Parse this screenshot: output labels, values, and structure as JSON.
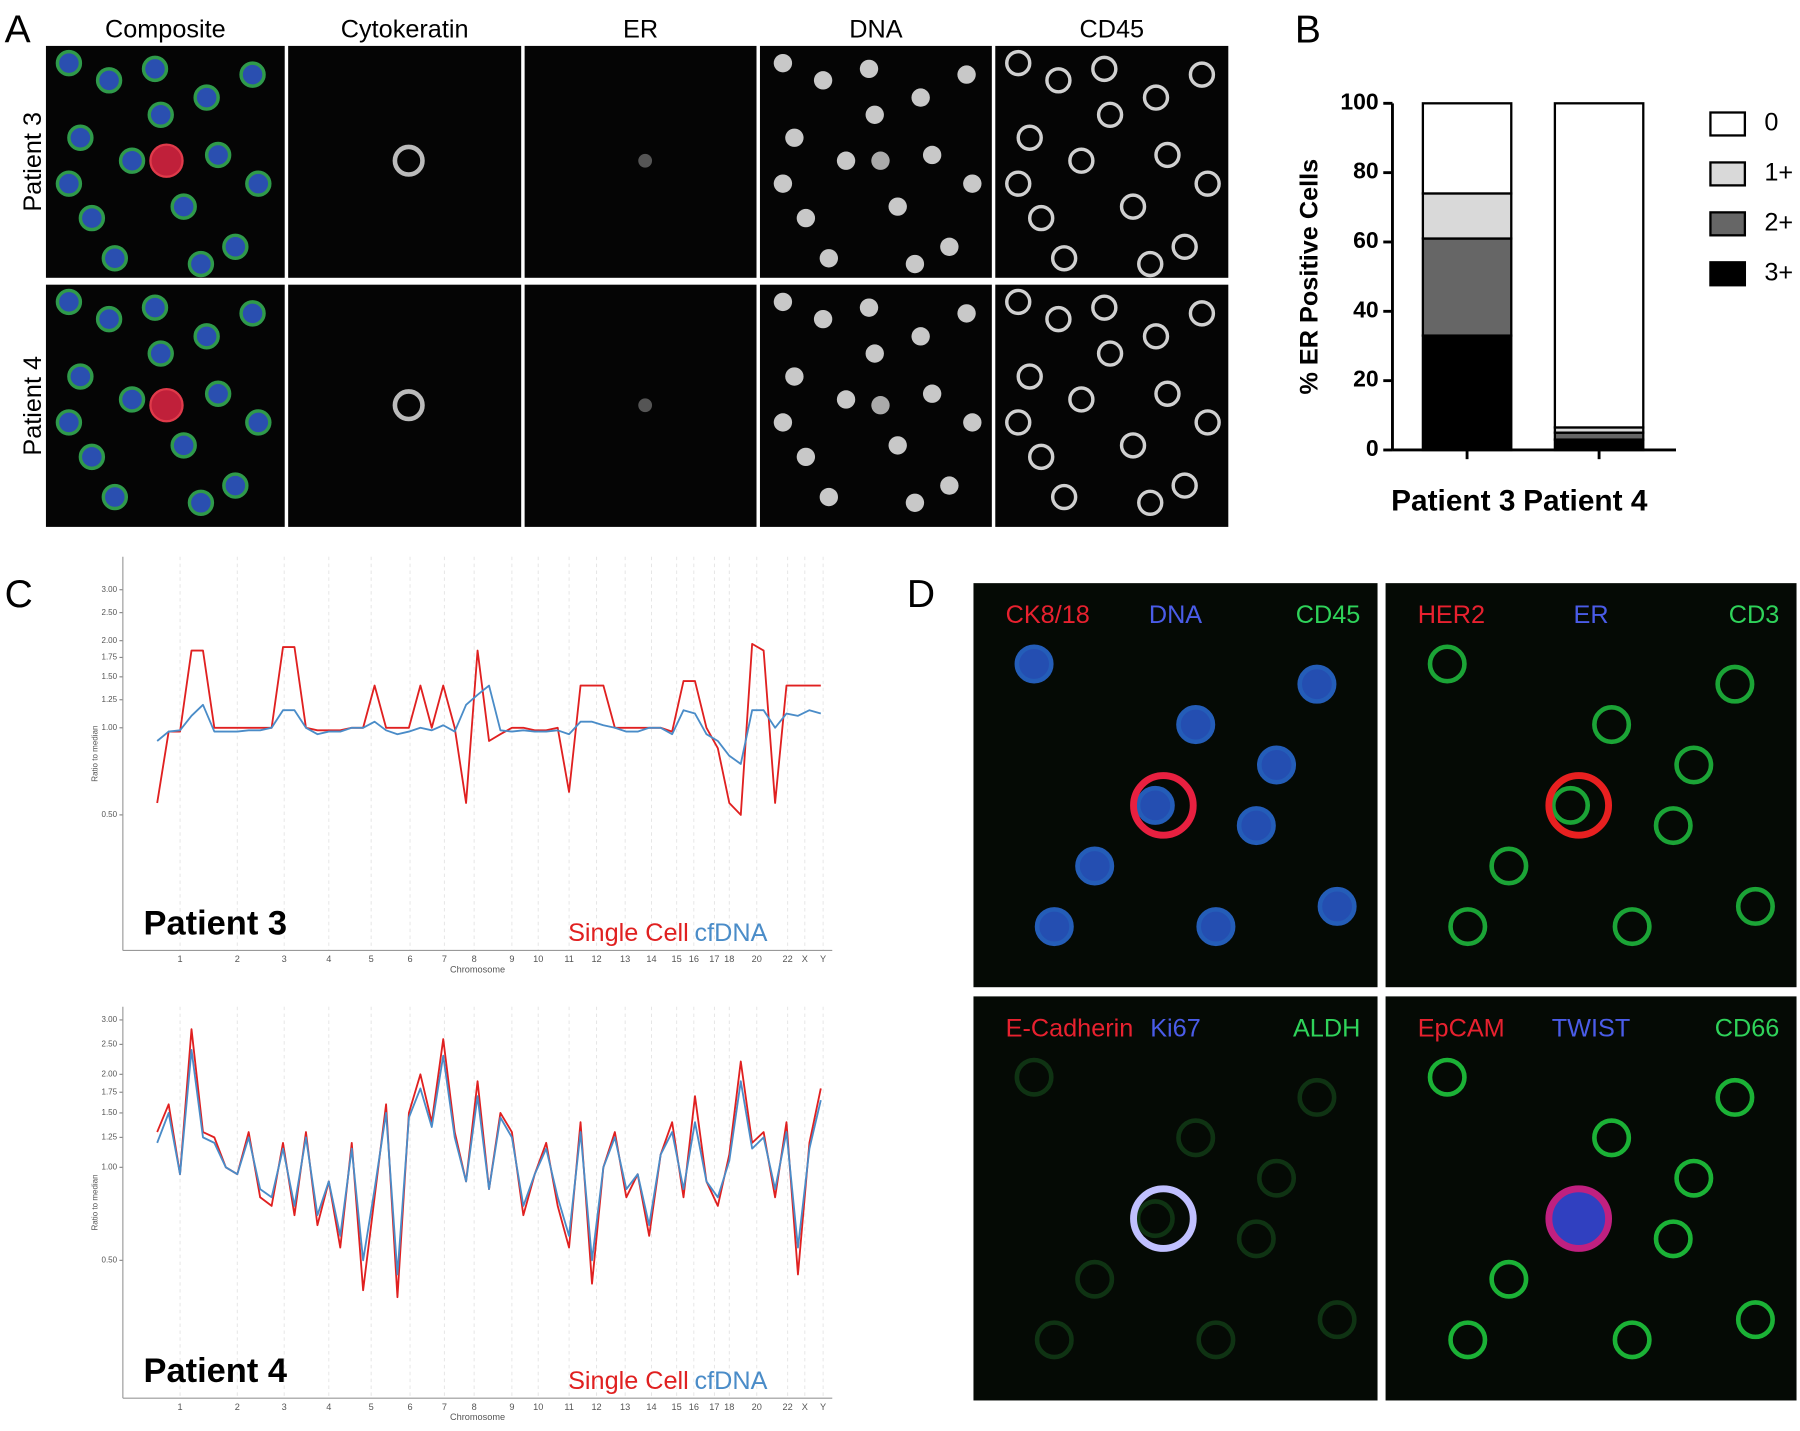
{
  "panel_labels": [
    "A",
    "B",
    "C",
    "D"
  ],
  "panel_a": {
    "columns": [
      "Composite",
      "Cytokeratin",
      "ER",
      "DNA",
      "CD45"
    ],
    "rows": [
      "Patient 3",
      "Patient 4"
    ]
  },
  "chart_data": [
    {
      "type": "bar",
      "stacked": true,
      "ylabel": "% ER Positive Cells",
      "categories": [
        "Patient 3",
        "Patient 4"
      ],
      "series": [
        {
          "name": "3+",
          "color": "#000000",
          "values": [
            33,
            3
          ]
        },
        {
          "name": "2+",
          "color": "#666666",
          "values": [
            28,
            2
          ]
        },
        {
          "name": "1+",
          "color": "#d9d9d9",
          "values": [
            13,
            1.5
          ]
        },
        {
          "name": "0",
          "color": "#ffffff",
          "values": [
            26,
            93.5
          ]
        }
      ],
      "ylim": [
        0,
        100
      ],
      "yticks": [
        0,
        20,
        40,
        60,
        80,
        100
      ],
      "legend": "right"
    },
    {
      "type": "line",
      "annotation": "Patient 3",
      "xlabel": "Chromosome",
      "ylabel": "Ratio to median",
      "yscale": "log",
      "x": [
        30,
        40,
        50,
        60,
        70,
        80,
        90,
        100,
        110,
        120,
        130,
        140,
        150,
        160,
        170,
        180,
        190,
        200,
        210,
        220,
        230,
        240,
        250,
        260,
        270,
        280,
        290,
        300,
        310,
        320,
        330,
        340,
        350,
        360,
        370,
        380,
        390,
        400,
        410,
        420,
        430,
        440,
        450,
        460,
        470,
        480,
        490,
        500,
        510,
        520,
        530,
        540,
        550,
        560,
        570,
        580,
        590,
        600,
        610
      ],
      "series": [
        {
          "name": "Single Cell",
          "color": "#e02020",
          "values": [
            0.55,
            0.97,
            0.97,
            1.85,
            1.85,
            1.0,
            1.0,
            1.0,
            1.0,
            1.0,
            1.0,
            1.9,
            1.9,
            1.0,
            0.98,
            0.98,
            0.98,
            1.0,
            1.0,
            1.4,
            1.0,
            1.0,
            1.0,
            1.4,
            1.0,
            1.4,
            1.0,
            0.55,
            1.85,
            0.9,
            0.95,
            1.0,
            1.0,
            0.98,
            0.98,
            1.0,
            0.6,
            1.4,
            1.4,
            1.4,
            1.0,
            1.0,
            1.0,
            1.0,
            1.0,
            0.97,
            1.45,
            1.45,
            1.0,
            0.85,
            0.55,
            0.5,
            1.95,
            1.85,
            0.55,
            1.4,
            1.4,
            1.4,
            1.4
          ]
        },
        {
          "name": "cfDNA",
          "color": "#4a8cc8",
          "values": [
            0.9,
            0.97,
            0.98,
            1.1,
            1.2,
            0.97,
            0.97,
            0.97,
            0.98,
            0.98,
            1.0,
            1.15,
            1.15,
            1.0,
            0.95,
            0.97,
            0.97,
            1.0,
            1.0,
            1.05,
            0.98,
            0.95,
            0.97,
            1.0,
            0.98,
            1.02,
            0.97,
            1.2,
            1.3,
            1.4,
            0.98,
            0.97,
            0.98,
            0.97,
            0.97,
            0.98,
            0.95,
            1.05,
            1.05,
            1.02,
            1.0,
            0.97,
            0.97,
            1.0,
            1.0,
            0.95,
            1.15,
            1.12,
            0.95,
            0.9,
            0.8,
            0.75,
            1.15,
            1.15,
            1.0,
            1.12,
            1.1,
            1.15,
            1.12
          ]
        }
      ],
      "xlim": [
        0,
        620
      ],
      "xticks": [
        {
          "value": 50,
          "label": "1"
        },
        {
          "value": 100,
          "label": "2"
        },
        {
          "value": 141,
          "label": "3"
        },
        {
          "value": 180,
          "label": "4"
        },
        {
          "value": 217,
          "label": "5"
        },
        {
          "value": 251,
          "label": "6"
        },
        {
          "value": 281,
          "label": "7"
        },
        {
          "value": 307,
          "label": "8"
        },
        {
          "value": 340,
          "label": "9"
        },
        {
          "value": 363,
          "label": "10"
        },
        {
          "value": 390,
          "label": "11"
        },
        {
          "value": 414,
          "label": "12"
        },
        {
          "value": 439,
          "label": "13"
        },
        {
          "value": 462,
          "label": "14"
        },
        {
          "value": 484,
          "label": "15"
        },
        {
          "value": 499,
          "label": "16"
        },
        {
          "value": 517,
          "label": "17"
        },
        {
          "value": 530,
          "label": "18"
        },
        {
          "value": 554,
          "label": "20"
        },
        {
          "value": 581,
          "label": "22"
        },
        {
          "value": 596,
          "label": "X"
        },
        {
          "value": 612,
          "label": "Y"
        }
      ],
      "ylim": [
        0.17,
        3.9
      ],
      "yticks": [
        {
          "value": 0.5,
          "label": "0.50"
        },
        {
          "value": 1,
          "label": "1.00"
        },
        {
          "value": 1.25,
          "label": "1.25"
        },
        {
          "value": 1.5,
          "label": "1.50"
        },
        {
          "value": 1.75,
          "label": "1.75"
        },
        {
          "value": 2,
          "label": "2.00"
        },
        {
          "value": 2.5,
          "label": "2.50"
        },
        {
          "value": 3,
          "label": "3.00"
        }
      ]
    },
    {
      "type": "line",
      "annotation": "Patient 4",
      "xlabel": "Chromosome",
      "ylabel": "Ratio to median",
      "yscale": "log",
      "x": [
        30,
        40,
        50,
        60,
        70,
        80,
        90,
        100,
        110,
        120,
        130,
        140,
        150,
        160,
        170,
        180,
        190,
        200,
        210,
        220,
        230,
        240,
        250,
        260,
        270,
        280,
        290,
        300,
        310,
        320,
        330,
        340,
        350,
        360,
        370,
        380,
        390,
        400,
        410,
        420,
        430,
        440,
        450,
        460,
        470,
        480,
        490,
        500,
        510,
        520,
        530,
        540,
        550,
        560,
        570,
        580,
        590,
        600,
        610
      ],
      "series": [
        {
          "name": "Single Cell",
          "color": "#e02020",
          "values": [
            1.3,
            1.6,
            0.95,
            2.8,
            1.3,
            1.25,
            1.0,
            0.95,
            1.3,
            0.8,
            0.75,
            1.2,
            0.7,
            1.3,
            0.65,
            0.9,
            0.55,
            1.2,
            0.4,
            0.8,
            1.6,
            0.38,
            1.5,
            2.0,
            1.4,
            2.6,
            1.3,
            0.9,
            1.9,
            0.85,
            1.5,
            1.3,
            0.7,
            0.95,
            1.2,
            0.75,
            0.55,
            1.4,
            0.42,
            1.0,
            1.3,
            0.8,
            0.95,
            0.6,
            1.1,
            1.4,
            0.8,
            1.7,
            0.9,
            0.75,
            1.1,
            2.2,
            1.2,
            1.3,
            0.8,
            1.4,
            0.45,
            1.2,
            1.8
          ]
        },
        {
          "name": "cfDNA",
          "color": "#4a8cc8",
          "values": [
            1.2,
            1.5,
            0.95,
            2.4,
            1.25,
            1.2,
            1.0,
            0.95,
            1.25,
            0.85,
            0.8,
            1.15,
            0.75,
            1.25,
            0.7,
            0.9,
            0.6,
            1.15,
            0.5,
            0.85,
            1.5,
            0.45,
            1.45,
            1.8,
            1.35,
            2.3,
            1.25,
            0.9,
            1.7,
            0.85,
            1.45,
            1.25,
            0.75,
            0.95,
            1.15,
            0.8,
            0.6,
            1.3,
            0.5,
            1.0,
            1.25,
            0.85,
            0.95,
            0.65,
            1.1,
            1.3,
            0.85,
            1.4,
            0.9,
            0.8,
            1.05,
            1.9,
            1.15,
            1.25,
            0.85,
            1.3,
            0.55,
            1.15,
            1.65
          ]
        }
      ],
      "xlim": [
        0,
        620
      ],
      "xticks": [
        {
          "value": 50,
          "label": "1"
        },
        {
          "value": 100,
          "label": "2"
        },
        {
          "value": 141,
          "label": "3"
        },
        {
          "value": 180,
          "label": "4"
        },
        {
          "value": 217,
          "label": "5"
        },
        {
          "value": 251,
          "label": "6"
        },
        {
          "value": 281,
          "label": "7"
        },
        {
          "value": 307,
          "label": "8"
        },
        {
          "value": 340,
          "label": "9"
        },
        {
          "value": 363,
          "label": "10"
        },
        {
          "value": 390,
          "label": "11"
        },
        {
          "value": 414,
          "label": "12"
        },
        {
          "value": 439,
          "label": "13"
        },
        {
          "value": 462,
          "label": "14"
        },
        {
          "value": 484,
          "label": "15"
        },
        {
          "value": 499,
          "label": "16"
        },
        {
          "value": 517,
          "label": "17"
        },
        {
          "value": 530,
          "label": "18"
        },
        {
          "value": 554,
          "label": "20"
        },
        {
          "value": 581,
          "label": "22"
        },
        {
          "value": 596,
          "label": "X"
        },
        {
          "value": 612,
          "label": "Y"
        }
      ],
      "ylim": [
        0.179,
        3.31
      ],
      "yticks": [
        {
          "value": 0.5,
          "label": "0.50"
        },
        {
          "value": 1,
          "label": "1.00"
        },
        {
          "value": 1.25,
          "label": "1.25"
        },
        {
          "value": 1.5,
          "label": "1.50"
        },
        {
          "value": 1.75,
          "label": "1.75"
        },
        {
          "value": 2,
          "label": "2.00"
        },
        {
          "value": 2.5,
          "label": "2.50"
        },
        {
          "value": 3,
          "label": "3.00"
        }
      ]
    }
  ],
  "panel_d": {
    "images": [
      {
        "markers": [
          {
            "label": "CK8/18",
            "color": "#e8212f"
          },
          {
            "label": "DNA",
            "color": "#4a5ce8"
          },
          {
            "label": "CD45",
            "color": "#2fd35a"
          }
        ]
      },
      {
        "markers": [
          {
            "label": "HER2",
            "color": "#e8212f"
          },
          {
            "label": "ER",
            "color": "#4a5ce8"
          },
          {
            "label": "CD3",
            "color": "#2fd35a"
          }
        ]
      },
      {
        "markers": [
          {
            "label": "E-Cadherin",
            "color": "#e8212f"
          },
          {
            "label": "Ki67",
            "color": "#4a5ce8"
          },
          {
            "label": "ALDH",
            "color": "#2fd35a"
          }
        ]
      },
      {
        "markers": [
          {
            "label": "EpCAM",
            "color": "#e8212f"
          },
          {
            "label": "TWIST",
            "color": "#4a5ce8"
          },
          {
            "label": "CD66",
            "color": "#2fd35a"
          }
        ]
      }
    ]
  }
}
